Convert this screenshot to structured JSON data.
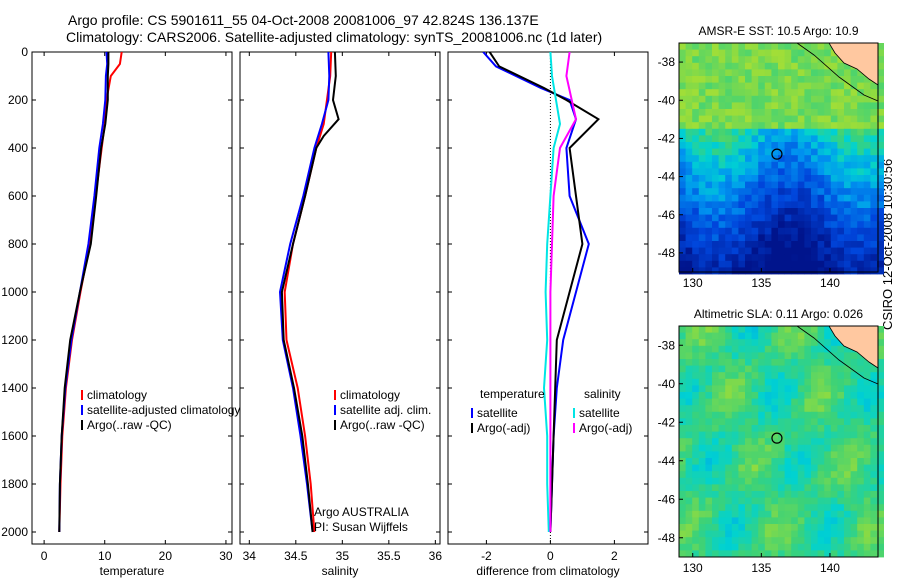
{
  "header": {
    "line1": "Argo profile: CS 5901611_55 04-Oct-2008 20081006_97 42.824S 136.137E",
    "line2": "Climatology: CARS2006. Satellite-adjusted climatology: synTS_20081006.nc (1d later)"
  },
  "credit": "CSIRO 12-Oct-2008 10:30:56",
  "colors": {
    "climatology": "#ff0000",
    "satellite": "#0000ff",
    "argo": "#000000",
    "sal_satellite": "#00e5e5",
    "sal_argo": "#ff00ff",
    "land": "#ffc8a0"
  },
  "chart_data": [
    {
      "type": "line",
      "xlabel": "temperature",
      "ylabel": "",
      "xlim": [
        -2,
        31
      ],
      "ylim": [
        2050,
        0
      ],
      "xticks": [
        0,
        10,
        20,
        30
      ],
      "yticks": [
        0,
        200,
        400,
        600,
        800,
        1000,
        1200,
        1400,
        1600,
        1800,
        2000
      ],
      "legend": {
        "placement": "center-right",
        "entries": [
          "climatology",
          "satellite-adjusted climatology",
          "Argo(..raw -QC)"
        ]
      },
      "series": [
        {
          "name": "climatology",
          "color": "#ff0000",
          "points": [
            [
              12.8,
              0
            ],
            [
              12.5,
              50
            ],
            [
              11.0,
              100
            ],
            [
              10.3,
              200
            ],
            [
              10.0,
              300
            ],
            [
              9.5,
              400
            ],
            [
              8.5,
              600
            ],
            [
              7.5,
              800
            ],
            [
              6.0,
              1000
            ],
            [
              4.6,
              1200
            ],
            [
              3.6,
              1400
            ],
            [
              3.0,
              1600
            ],
            [
              2.7,
              1800
            ],
            [
              2.5,
              2000
            ]
          ]
        },
        {
          "name": "satellite-adjusted climatology",
          "color": "#0000ff",
          "points": [
            [
              10.3,
              0
            ],
            [
              10.4,
              50
            ],
            [
              10.2,
              100
            ],
            [
              10.1,
              200
            ],
            [
              9.7,
              300
            ],
            [
              9.1,
              400
            ],
            [
              8.3,
              600
            ],
            [
              7.3,
              800
            ],
            [
              5.9,
              1000
            ],
            [
              4.5,
              1200
            ],
            [
              3.5,
              1400
            ],
            [
              2.9,
              1600
            ],
            [
              2.6,
              1800
            ],
            [
              2.5,
              2000
            ]
          ]
        },
        {
          "name": "Argo(..raw -QC)",
          "color": "#000000",
          "points": [
            [
              10.6,
              0
            ],
            [
              10.6,
              50
            ],
            [
              10.5,
              100
            ],
            [
              10.5,
              200
            ],
            [
              10.1,
              300
            ],
            [
              9.4,
              400
            ],
            [
              8.6,
              600
            ],
            [
              7.7,
              800
            ],
            [
              5.9,
              1000
            ],
            [
              4.3,
              1200
            ],
            [
              3.4,
              1400
            ],
            [
              2.9,
              1600
            ],
            [
              2.6,
              1800
            ],
            [
              2.5,
              2000
            ]
          ]
        }
      ]
    },
    {
      "type": "line",
      "xlabel": "salinity",
      "ylabel": "",
      "xlim": [
        33.9,
        36.05
      ],
      "ylim": [
        2050,
        0
      ],
      "xticks": [
        34,
        34.5,
        35,
        35.5,
        36
      ],
      "yticks": [
        0,
        200,
        400,
        600,
        800,
        1000,
        1200,
        1400,
        1600,
        1800,
        2000
      ],
      "legend": {
        "placement": "center-right",
        "entries": [
          "climatology",
          "satellite adj. clim.",
          "Argo(..raw -QC)"
        ]
      },
      "annotation": [
        "Argo AUSTRALIA",
        "PI: Susan Wijffels"
      ],
      "series": [
        {
          "name": "climatology",
          "color": "#ff0000",
          "points": [
            [
              34.88,
              0
            ],
            [
              34.87,
              100
            ],
            [
              34.8,
              300
            ],
            [
              34.72,
              400
            ],
            [
              34.6,
              600
            ],
            [
              34.47,
              800
            ],
            [
              34.38,
              1000
            ],
            [
              34.4,
              1200
            ],
            [
              34.52,
              1400
            ],
            [
              34.6,
              1600
            ],
            [
              34.66,
              1800
            ],
            [
              34.7,
              2000
            ]
          ]
        },
        {
          "name": "satellite adj. clim.",
          "color": "#0000ff",
          "points": [
            [
              34.85,
              0
            ],
            [
              34.86,
              100
            ],
            [
              34.85,
              200
            ],
            [
              34.78,
              300
            ],
            [
              34.7,
              400
            ],
            [
              34.58,
              600
            ],
            [
              34.44,
              800
            ],
            [
              34.33,
              1000
            ],
            [
              34.36,
              1200
            ],
            [
              34.47,
              1400
            ],
            [
              34.55,
              1600
            ],
            [
              34.62,
              1800
            ],
            [
              34.68,
              2000
            ]
          ]
        },
        {
          "name": "Argo(..raw -QC)",
          "color": "#000000",
          "points": [
            [
              34.92,
              0
            ],
            [
              34.93,
              100
            ],
            [
              34.9,
              200
            ],
            [
              34.96,
              280
            ],
            [
              34.8,
              350
            ],
            [
              34.72,
              400
            ],
            [
              34.6,
              600
            ],
            [
              34.47,
              800
            ],
            [
              34.35,
              1000
            ],
            [
              34.37,
              1200
            ],
            [
              34.48,
              1400
            ],
            [
              34.57,
              1600
            ],
            [
              34.63,
              1800
            ],
            [
              34.68,
              2000
            ]
          ]
        }
      ]
    },
    {
      "type": "line",
      "xlabel": "difference from climatology",
      "ylabel": "",
      "xlim": [
        -3.2,
        3.05
      ],
      "ylim": [
        2050,
        0
      ],
      "xticks": [
        -2,
        0,
        2
      ],
      "yticks": [
        0,
        200,
        400,
        600,
        800,
        1000,
        1200,
        1400,
        1600,
        1800,
        2000
      ],
      "legend": {
        "placement": "lower-center",
        "groups": [
          "temperature",
          "salinity"
        ],
        "entries": [
          "satellite",
          "Argo(-adj)",
          "satellite",
          "Argo(-adj)"
        ]
      },
      "series": [
        {
          "name": "satellite",
          "group": "temperature",
          "color": "#0000ff",
          "points": [
            [
              -2.1,
              0
            ],
            [
              -1.7,
              60
            ],
            [
              -0.3,
              150
            ],
            [
              0.6,
              200
            ],
            [
              0.8,
              280
            ],
            [
              0.5,
              400
            ],
            [
              0.6,
              600
            ],
            [
              1.2,
              800
            ],
            [
              0.8,
              1000
            ],
            [
              0.4,
              1200
            ],
            [
              0.2,
              1400
            ],
            [
              0.1,
              1600
            ],
            [
              0.05,
              1800
            ],
            [
              0.0,
              2000
            ]
          ]
        },
        {
          "name": "Argo(-adj)",
          "group": "temperature",
          "color": "#000000",
          "points": [
            [
              -1.9,
              0
            ],
            [
              -1.6,
              60
            ],
            [
              -0.2,
              150
            ],
            [
              0.5,
              200
            ],
            [
              1.5,
              280
            ],
            [
              0.6,
              400
            ],
            [
              0.8,
              600
            ],
            [
              1.0,
              800
            ],
            [
              0.6,
              1000
            ],
            [
              0.2,
              1200
            ],
            [
              0.15,
              1400
            ],
            [
              0.1,
              1600
            ],
            [
              0.05,
              1800
            ],
            [
              0.0,
              2000
            ]
          ]
        },
        {
          "name": "satellite",
          "group": "salinity",
          "color": "#00e5e5",
          "points": [
            [
              0.0,
              0
            ],
            [
              0.05,
              100
            ],
            [
              0.3,
              300
            ],
            [
              0.1,
              400
            ],
            [
              0.0,
              600
            ],
            [
              -0.1,
              800
            ],
            [
              -0.15,
              1000
            ],
            [
              -0.1,
              1200
            ],
            [
              -0.2,
              1400
            ],
            [
              -0.1,
              1600
            ],
            [
              -0.1,
              1800
            ],
            [
              -0.05,
              2000
            ]
          ]
        },
        {
          "name": "Argo(-adj)",
          "group": "salinity",
          "color": "#ff00ff",
          "points": [
            [
              0.6,
              0
            ],
            [
              0.5,
              100
            ],
            [
              0.8,
              280
            ],
            [
              0.3,
              400
            ],
            [
              0.1,
              600
            ],
            [
              0.05,
              800
            ],
            [
              0.0,
              1000
            ],
            [
              0.0,
              1200
            ],
            [
              0.0,
              1600
            ],
            [
              0.0,
              2000
            ]
          ]
        }
      ]
    },
    {
      "type": "heatmap",
      "title": "AMSR-E SST: 10.5 Argo: 10.9",
      "xlim": [
        129,
        143.5
      ],
      "ylim": [
        -49,
        -37
      ],
      "xticks": [
        130,
        135,
        140
      ],
      "yticks": [
        -38,
        -40,
        -42,
        -44,
        -46,
        -48
      ],
      "marker": {
        "lon": 136.137,
        "lat": -42.824
      }
    },
    {
      "type": "heatmap",
      "title": "Altimetric SLA: 0.11 Argo: 0.026",
      "xlim": [
        129,
        143.5
      ],
      "ylim": [
        -49,
        -37
      ],
      "xticks": [
        130,
        135,
        140
      ],
      "yticks": [
        -38,
        -40,
        -42,
        -44,
        -46,
        -48
      ],
      "marker": {
        "lon": 136.137,
        "lat": -42.824
      }
    }
  ]
}
